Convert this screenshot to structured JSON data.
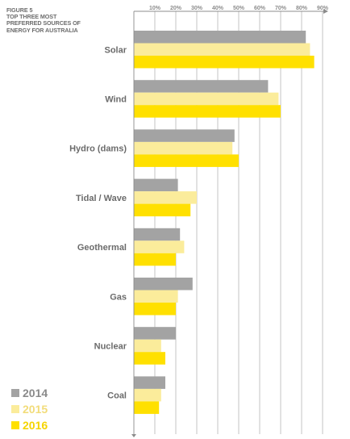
{
  "figure": {
    "number": "FIGURE 5",
    "title_lines": [
      "TOP THREE MOST",
      "PREFERRED SOURCES OF",
      "ENERGY FOR AUSTRALIA"
    ]
  },
  "chart_data": {
    "type": "bar",
    "orientation": "horizontal",
    "title": "TOP THREE MOST PREFERRED SOURCES OF ENERGY FOR AUSTRALIA",
    "categories": [
      "Solar",
      "Wind",
      "Hydro (dams)",
      "Tidal / Wave",
      "Geothermal",
      "Gas",
      "Nuclear",
      "Coal"
    ],
    "series": [
      {
        "name": "2014",
        "color": "#a3a3a3",
        "values": [
          82,
          64,
          48,
          21,
          22,
          28,
          20,
          15
        ]
      },
      {
        "name": "2015",
        "color": "#fbec9b",
        "values": [
          84,
          69,
          47,
          30,
          24,
          21,
          13,
          13
        ]
      },
      {
        "name": "2016",
        "color": "#ffe000",
        "values": [
          86,
          70,
          50,
          27,
          20,
          20,
          15,
          12
        ]
      }
    ],
    "xticks": [
      10,
      20,
      30,
      40,
      50,
      60,
      70,
      80,
      90
    ],
    "xtick_labels": [
      "10%",
      "20%",
      "30%",
      "40%",
      "50%",
      "60%",
      "70%",
      "80%",
      "90%"
    ],
    "xlim": [
      0,
      95
    ],
    "axis_position": "top",
    "grid": true,
    "legend_position": "bottom-left"
  },
  "legend": {
    "items": [
      {
        "label": "2014",
        "color": "#a3a3a3"
      },
      {
        "label": "2015",
        "color": "#fbec9b"
      },
      {
        "label": "2016",
        "color": "#ffe000"
      }
    ]
  }
}
